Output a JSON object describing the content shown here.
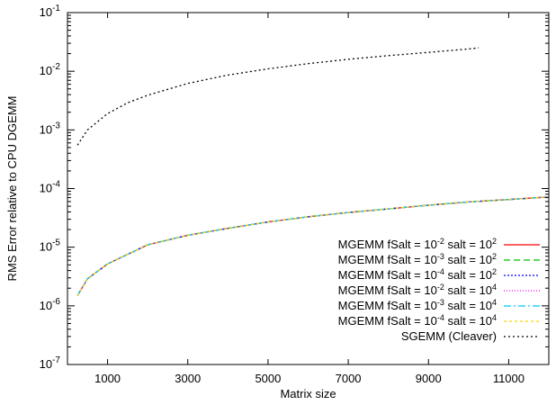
{
  "chart_data": {
    "type": "line",
    "title": "",
    "xlabel": "Matrix size",
    "ylabel": "RMS Error relative to CPU DGEMM",
    "x_range": [
      0,
      12000
    ],
    "y_range": [
      1e-07,
      0.1
    ],
    "y_scale": "log",
    "grid": false,
    "legend_position": "bottom-right",
    "x_ticks": [
      1000,
      3000,
      5000,
      7000,
      9000,
      11000
    ],
    "y_ticks": [
      {
        "value": 1e-07,
        "mantissa": "10",
        "exp": "-7"
      },
      {
        "value": 1e-06,
        "mantissa": "10",
        "exp": "-6"
      },
      {
        "value": 1e-05,
        "mantissa": "10",
        "exp": "-5"
      },
      {
        "value": 0.0001,
        "mantissa": "10",
        "exp": "-4"
      },
      {
        "value": 0.001,
        "mantissa": "10",
        "exp": "-3"
      },
      {
        "value": 0.01,
        "mantissa": "10",
        "exp": "-2"
      },
      {
        "value": 0.1,
        "mantissa": "10",
        "exp": "-1"
      }
    ],
    "series": [
      {
        "name": "MGEMM fSalt = 10-2 salt = 102",
        "label_parts": [
          "MGEMM fSalt = 10",
          "-2",
          " salt = 10",
          "2"
        ],
        "color": "#ff0000",
        "dash": "",
        "x": [
          250,
          500,
          1000,
          2000,
          3000,
          4000,
          5000,
          6000,
          7000,
          8000,
          9000,
          10000,
          11000,
          12000
        ],
        "y": [
          1.5e-06,
          2.9e-06,
          5.2e-06,
          1.1e-05,
          1.6e-05,
          2.1e-05,
          2.7e-05,
          3.3e-05,
          3.9e-05,
          4.5e-05,
          5.2e-05,
          5.9e-05,
          6.5e-05,
          7.2e-05
        ]
      },
      {
        "name": "MGEMM fSalt = 10-3 salt = 102",
        "label_parts": [
          "MGEMM fSalt = 10",
          "-3",
          " salt = 10",
          "2"
        ],
        "color": "#00c000",
        "dash": "7,4",
        "x": [
          250,
          500,
          1000,
          2000,
          3000,
          4000,
          5000,
          6000,
          7000,
          8000,
          9000,
          10000,
          11000,
          12000
        ],
        "y": [
          1.5e-06,
          2.9e-06,
          5.2e-06,
          1.1e-05,
          1.6e-05,
          2.1e-05,
          2.7e-05,
          3.3e-05,
          3.9e-05,
          4.5e-05,
          5.2e-05,
          5.9e-05,
          6.5e-05,
          7.2e-05
        ]
      },
      {
        "name": "MGEMM fSalt = 10-4 salt = 102",
        "label_parts": [
          "MGEMM fSalt = 10",
          "-4",
          " salt = 10",
          "2"
        ],
        "color": "#0000ff",
        "dash": "2,2",
        "x": [
          250,
          500,
          1000,
          2000,
          3000,
          4000,
          5000,
          6000,
          7000,
          8000,
          9000,
          10000,
          11000,
          12000
        ],
        "y": [
          1.5e-06,
          2.9e-06,
          5.2e-06,
          1.1e-05,
          1.6e-05,
          2.1e-05,
          2.7e-05,
          3.3e-05,
          3.9e-05,
          4.5e-05,
          5.2e-05,
          5.9e-05,
          6.5e-05,
          7.2e-05
        ]
      },
      {
        "name": "MGEMM fSalt = 10-2 salt = 104",
        "label_parts": [
          "MGEMM fSalt = 10",
          "-2",
          " salt = 10",
          "4"
        ],
        "color": "#ff00ff",
        "dash": "1,2",
        "x": [
          250,
          500,
          1000,
          2000,
          3000,
          4000,
          5000,
          6000,
          7000,
          8000,
          9000,
          10000,
          11000,
          12000
        ],
        "y": [
          1.5e-06,
          2.9e-06,
          5.2e-06,
          1.1e-05,
          1.6e-05,
          2.1e-05,
          2.7e-05,
          3.3e-05,
          3.9e-05,
          4.5e-05,
          5.2e-05,
          5.9e-05,
          6.5e-05,
          7.2e-05
        ]
      },
      {
        "name": "MGEMM fSalt = 10-3 salt = 104",
        "label_parts": [
          "MGEMM fSalt = 10",
          "-3",
          " salt = 10",
          "4"
        ],
        "color": "#00c8ff",
        "dash": "8,3,2,3",
        "x": [
          250,
          500,
          1000,
          2000,
          3000,
          4000,
          5000,
          6000,
          7000,
          8000,
          9000,
          10000,
          11000,
          12000
        ],
        "y": [
          1.5e-06,
          2.9e-06,
          5.2e-06,
          1.1e-05,
          1.6e-05,
          2.1e-05,
          2.7e-05,
          3.3e-05,
          3.9e-05,
          4.5e-05,
          5.2e-05,
          5.9e-05,
          6.5e-05,
          7.2e-05
        ]
      },
      {
        "name": "MGEMM fSalt = 10-4 salt = 104",
        "label_parts": [
          "MGEMM fSalt = 10",
          "-4",
          " salt = 10",
          "4"
        ],
        "color": "#ffd700",
        "dash": "3,3",
        "x": [
          250,
          500,
          1000,
          2000,
          3000,
          4000,
          5000,
          6000,
          7000,
          8000,
          9000,
          10000,
          11000,
          12000
        ],
        "y": [
          1.5e-06,
          2.9e-06,
          5.2e-06,
          1.1e-05,
          1.6e-05,
          2.1e-05,
          2.7e-05,
          3.3e-05,
          3.9e-05,
          4.5e-05,
          5.2e-05,
          5.9e-05,
          6.5e-05,
          7.2e-05
        ]
      },
      {
        "name": "SGEMM (Cleaver)",
        "label_parts": [
          "SGEMM (Cleaver)"
        ],
        "color": "#000000",
        "dash": "2,3",
        "x": [
          250,
          500,
          1000,
          1500,
          2000,
          3000,
          4000,
          5000,
          6000,
          7000,
          8000,
          9000,
          10000,
          10250
        ],
        "y": [
          0.00055,
          0.001,
          0.0019,
          0.0029,
          0.0039,
          0.0062,
          0.0086,
          0.011,
          0.0135,
          0.016,
          0.0185,
          0.021,
          0.024,
          0.025
        ]
      }
    ]
  }
}
